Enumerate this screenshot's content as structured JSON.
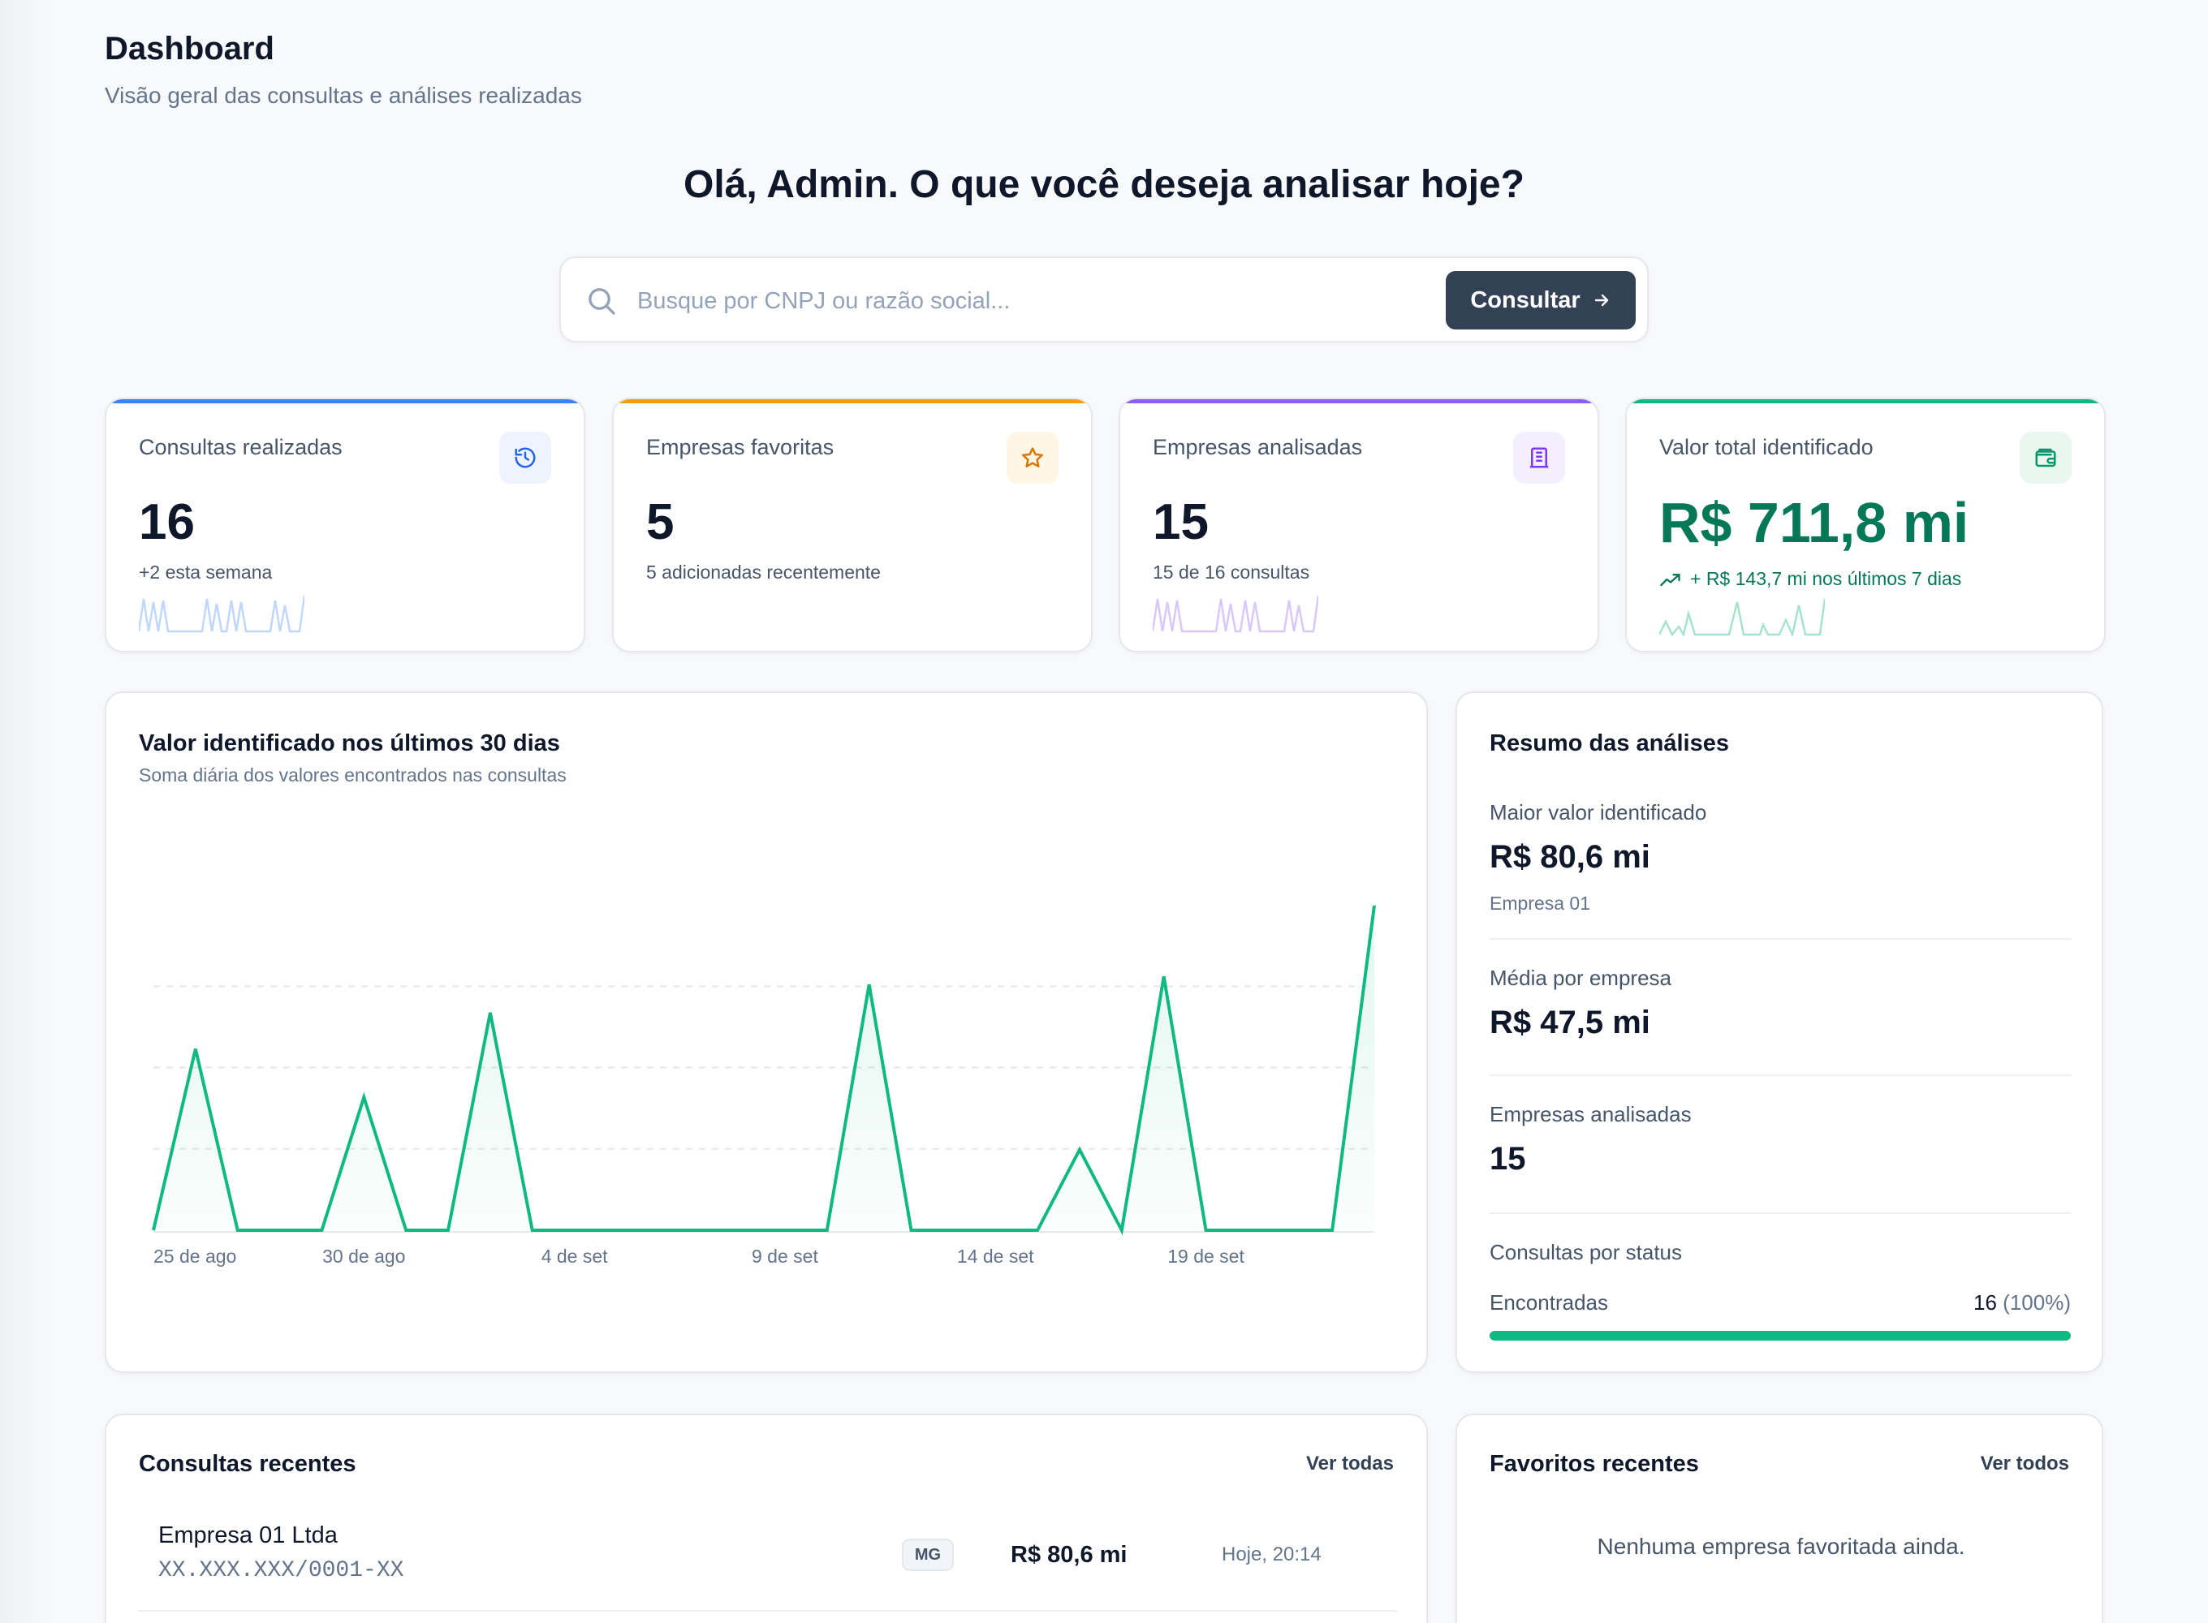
{
  "header": {
    "title": "Dashboard",
    "subtitle": "Visão geral das consultas e análises realizadas"
  },
  "greeting": "Olá, Admin. O que você deseja analisar hoje?",
  "search": {
    "placeholder": "Busque por CNPJ ou razão social...",
    "value": "",
    "button_label": "Consultar"
  },
  "stats": [
    {
      "label": "Consultas realizadas",
      "value": "16",
      "sub": "+2 esta semana",
      "icon": "history-icon",
      "accent": "#3b82f6",
      "spark_color": "#bfd7fb"
    },
    {
      "label": "Empresas favoritas",
      "value": "5",
      "sub": "5 adicionadas recentemente",
      "icon": "star-icon",
      "accent": "#f59e0b",
      "spark_color": "#f9d8a0"
    },
    {
      "label": "Empresas analisadas",
      "value": "15",
      "sub": "15 de 16 consultas",
      "icon": "building-icon",
      "accent": "#8b5cf6",
      "spark_color": "#d9c8fb"
    },
    {
      "label": "Valor total identificado",
      "value": "R$ 711,8 mi",
      "sub": "+ R$ 143,7 mi nos últimos 7 dias",
      "icon": "wallet-icon",
      "accent": "#10b981",
      "spark_color": "#a7e3cb"
    }
  ],
  "chart_data": {
    "type": "area",
    "title": "Valor identificado nos últimos 30 dias",
    "subtitle": "Soma diária dos valores encontrados nas consultas",
    "x_tick_labels": [
      "25 de ago",
      "30 de ago",
      "4 de set",
      "9 de set",
      "14 de set",
      "19 de set"
    ],
    "x_tick_index": [
      0,
      5,
      10,
      15,
      20,
      25
    ],
    "values": [
      0,
      45,
      0,
      0,
      0,
      33,
      0,
      0,
      54,
      0,
      0,
      0,
      0,
      0,
      0,
      0,
      0,
      61,
      0,
      0,
      0,
      0,
      20,
      0,
      63,
      0,
      0,
      0,
      0,
      80.6
    ],
    "ylim": [
      0,
      85
    ],
    "grid": true,
    "line_color": "#10b981"
  },
  "summary": {
    "title": "Resumo das análises",
    "max_label": "Maior valor identificado",
    "max_value": "R$ 80,6 mi",
    "max_company": "Empresa 01",
    "avg_label": "Média por empresa",
    "avg_value": "R$ 47,5 mi",
    "analyzed_label": "Empresas analisadas",
    "analyzed_value": "15",
    "status_title": "Consultas por status",
    "status_name": "Encontradas",
    "status_count": "16",
    "status_pct": "(100%)",
    "status_fraction": 1.0
  },
  "recent": {
    "title": "Consultas recentes",
    "link": "Ver todas",
    "rows": [
      {
        "name": "Empresa 01 Ltda",
        "cnpj": "XX.XXX.XXX/0001-XX",
        "uf": "MG",
        "value": "R$ 80,6 mi",
        "time": "Hoje, 20:14"
      }
    ]
  },
  "favorites": {
    "title": "Favoritos recentes",
    "link": "Ver todos",
    "empty": "Nenhuma empresa favoritada ainda."
  }
}
